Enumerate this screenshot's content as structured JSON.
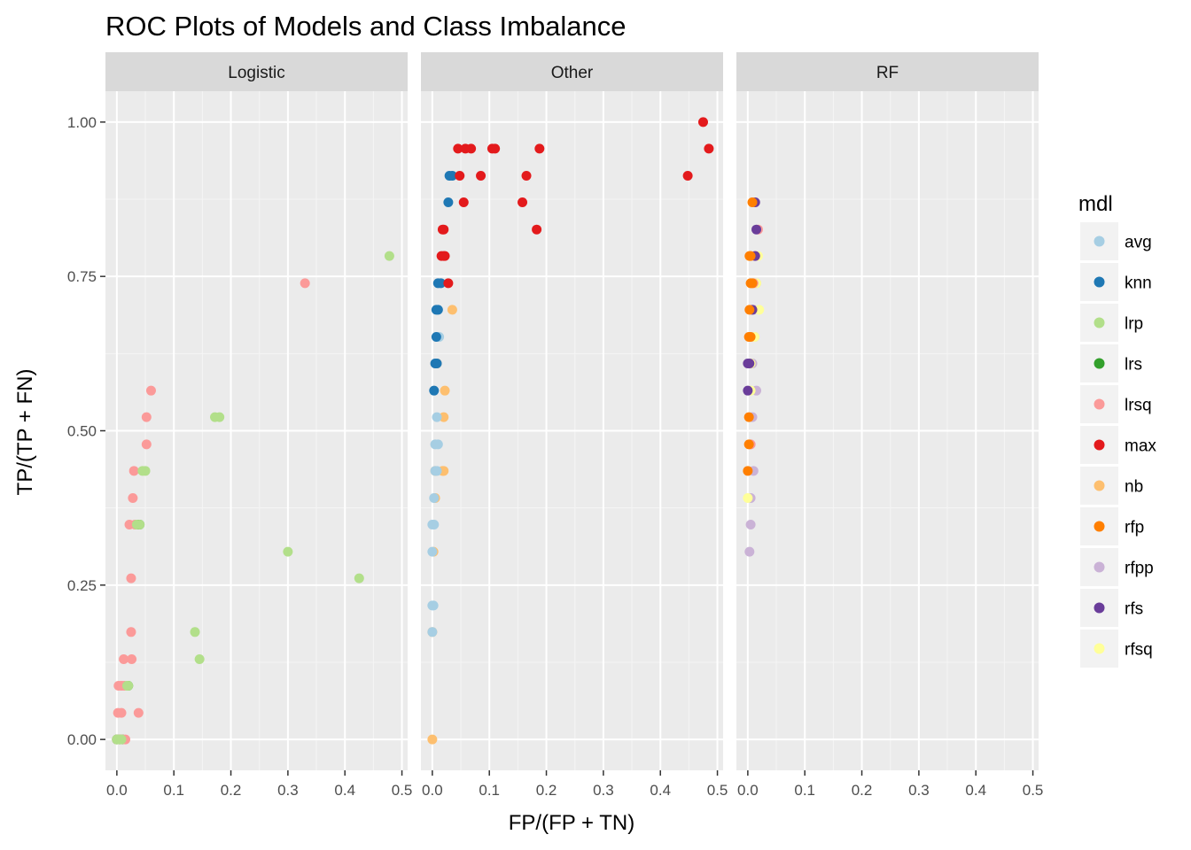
{
  "chart_data": {
    "type": "scatter",
    "title": "ROC Plots of Models and Class Imbalance",
    "xlabel": "FP/(FP + TN)",
    "ylabel": "TP/(TP + FN)",
    "xlim": [
      -0.02,
      0.51
    ],
    "ylim": [
      -0.05,
      1.05
    ],
    "x_ticks": [
      0.0,
      0.1,
      0.2,
      0.3,
      0.4,
      0.5
    ],
    "x_tick_labels": [
      "0.0",
      "0.1",
      "0.2",
      "0.3",
      "0.4",
      "0.5"
    ],
    "y_ticks": [
      0.0,
      0.25,
      0.5,
      0.75,
      1.0
    ],
    "y_tick_labels": [
      "0.00",
      "0.25",
      "0.50",
      "0.75",
      "1.00"
    ],
    "grid": true,
    "legend": {
      "title": "mdl",
      "position": "right",
      "entries": [
        {
          "name": "avg",
          "color": "#a6cee3"
        },
        {
          "name": "knn",
          "color": "#1f78b4"
        },
        {
          "name": "lrp",
          "color": "#b2df8a"
        },
        {
          "name": "lrs",
          "color": "#33a02c"
        },
        {
          "name": "lrsq",
          "color": "#fb9a99"
        },
        {
          "name": "max",
          "color": "#e31a1c"
        },
        {
          "name": "nb",
          "color": "#fdbf6f"
        },
        {
          "name": "rfp",
          "color": "#ff7f00"
        },
        {
          "name": "rfpp",
          "color": "#cab2d6"
        },
        {
          "name": "rfs",
          "color": "#6a3d9a"
        },
        {
          "name": "rfsq",
          "color": "#ffff99"
        }
      ]
    },
    "facets": [
      {
        "name": "Logistic",
        "series": [
          {
            "name": "lrs",
            "points": [
              [
                0.0,
                0.0
              ],
              [
                0.005,
                0.0
              ],
              [
                0.02,
                0.087
              ],
              [
                0.038,
                0.348
              ],
              [
                0.04,
                0.348
              ],
              [
                0.0,
                0.0
              ],
              [
                0.01,
                0.0
              ]
            ]
          },
          {
            "name": "lrsq",
            "points": [
              [
                0.0,
                0.0
              ],
              [
                0.005,
                0.0
              ],
              [
                0.01,
                0.0
              ],
              [
                0.015,
                0.0
              ],
              [
                0.002,
                0.043
              ],
              [
                0.008,
                0.043
              ],
              [
                0.038,
                0.043
              ],
              [
                0.003,
                0.087
              ],
              [
                0.008,
                0.087
              ],
              [
                0.013,
                0.087
              ],
              [
                0.012,
                0.13
              ],
              [
                0.026,
                0.13
              ],
              [
                0.025,
                0.174
              ],
              [
                0.025,
                0.261
              ],
              [
                0.022,
                0.348
              ],
              [
                0.032,
                0.348
              ],
              [
                0.028,
                0.391
              ],
              [
                0.03,
                0.435
              ],
              [
                0.052,
                0.478
              ],
              [
                0.052,
                0.522
              ],
              [
                0.06,
                0.565
              ],
              [
                0.33,
                0.739
              ]
            ]
          },
          {
            "name": "lrp",
            "points": [
              [
                0.0,
                0.0
              ],
              [
                0.004,
                0.0
              ],
              [
                0.008,
                0.0
              ],
              [
                0.02,
                0.087
              ],
              [
                0.018,
                0.087
              ],
              [
                0.145,
                0.13
              ],
              [
                0.137,
                0.174
              ],
              [
                0.3,
                0.304
              ],
              [
                0.425,
                0.261
              ],
              [
                0.035,
                0.348
              ],
              [
                0.04,
                0.348
              ],
              [
                0.045,
                0.435
              ],
              [
                0.05,
                0.435
              ],
              [
                0.172,
                0.522
              ],
              [
                0.18,
                0.522
              ],
              [
                0.478,
                0.783
              ]
            ]
          }
        ]
      },
      {
        "name": "Other",
        "series": [
          {
            "name": "nb",
            "points": [
              [
                0.0,
                0.0
              ],
              [
                0.0,
                0.174
              ],
              [
                0.002,
                0.304
              ],
              [
                0.005,
                0.391
              ],
              [
                0.005,
                0.435
              ],
              [
                0.018,
                0.435
              ],
              [
                0.02,
                0.435
              ],
              [
                0.02,
                0.522
              ],
              [
                0.022,
                0.565
              ],
              [
                0.035,
                0.696
              ],
              [
                0.008,
                0.609
              ]
            ]
          },
          {
            "name": "avg",
            "points": [
              [
                0.0,
                0.174
              ],
              [
                0.0,
                0.217
              ],
              [
                0.002,
                0.217
              ],
              [
                0.0,
                0.304
              ],
              [
                0.0,
                0.348
              ],
              [
                0.003,
                0.348
              ],
              [
                0.003,
                0.391
              ],
              [
                0.005,
                0.435
              ],
              [
                0.008,
                0.435
              ],
              [
                0.005,
                0.478
              ],
              [
                0.01,
                0.478
              ],
              [
                0.008,
                0.522
              ],
              [
                0.012,
                0.652
              ],
              [
                0.01,
                0.696
              ]
            ]
          },
          {
            "name": "knn",
            "points": [
              [
                0.003,
                0.565
              ],
              [
                0.005,
                0.609
              ],
              [
                0.008,
                0.609
              ],
              [
                0.007,
                0.652
              ],
              [
                0.007,
                0.696
              ],
              [
                0.01,
                0.696
              ],
              [
                0.01,
                0.739
              ],
              [
                0.015,
                0.739
              ],
              [
                0.028,
                0.87
              ],
              [
                0.03,
                0.913
              ],
              [
                0.035,
                0.913
              ]
            ]
          },
          {
            "name": "max",
            "points": [
              [
                0.028,
                0.739
              ],
              [
                0.016,
                0.783
              ],
              [
                0.02,
                0.783
              ],
              [
                0.022,
                0.783
              ],
              [
                0.018,
                0.826
              ],
              [
                0.02,
                0.826
              ],
              [
                0.048,
                0.913
              ],
              [
                0.085,
                0.913
              ],
              [
                0.165,
                0.913
              ],
              [
                0.448,
                0.913
              ],
              [
                0.055,
                0.87
              ],
              [
                0.158,
                0.87
              ],
              [
                0.045,
                0.957
              ],
              [
                0.058,
                0.957
              ],
              [
                0.068,
                0.957
              ],
              [
                0.105,
                0.957
              ],
              [
                0.11,
                0.957
              ],
              [
                0.188,
                0.957
              ],
              [
                0.485,
                0.957
              ],
              [
                0.183,
                0.826
              ],
              [
                0.475,
                1.0
              ]
            ]
          }
        ]
      },
      {
        "name": "RF",
        "series": [
          {
            "name": "rfpp",
            "points": [
              [
                0.003,
                0.304
              ],
              [
                0.005,
                0.348
              ],
              [
                0.005,
                0.391
              ],
              [
                0.01,
                0.435
              ],
              [
                0.005,
                0.478
              ],
              [
                0.008,
                0.522
              ],
              [
                0.015,
                0.565
              ],
              [
                0.008,
                0.609
              ],
              [
                0.012,
                0.652
              ],
              [
                0.01,
                0.696
              ],
              [
                0.015,
                0.739
              ],
              [
                0.012,
                0.783
              ]
            ]
          },
          {
            "name": "rfsq",
            "points": [
              [
                0.0,
                0.391
              ],
              [
                0.005,
                0.565
              ],
              [
                0.005,
                0.609
              ],
              [
                0.012,
                0.652
              ],
              [
                0.02,
                0.696
              ],
              [
                0.015,
                0.739
              ],
              [
                0.018,
                0.783
              ]
            ]
          },
          {
            "name": "lrsq",
            "points": [
              [
                0.005,
                0.478
              ],
              [
                0.008,
                0.696
              ],
              [
                0.013,
                0.783
              ],
              [
                0.018,
                0.826
              ],
              [
                0.01,
                0.739
              ]
            ]
          },
          {
            "name": "rfs",
            "points": [
              [
                0.0,
                0.565
              ],
              [
                0.0,
                0.609
              ],
              [
                0.003,
                0.609
              ],
              [
                0.008,
                0.696
              ],
              [
                0.015,
                0.826
              ],
              [
                0.013,
                0.87
              ],
              [
                0.013,
                0.783
              ]
            ]
          },
          {
            "name": "rfp",
            "points": [
              [
                0.0,
                0.435
              ],
              [
                0.002,
                0.478
              ],
              [
                0.002,
                0.522
              ],
              [
                0.002,
                0.652
              ],
              [
                0.005,
                0.652
              ],
              [
                0.003,
                0.696
              ],
              [
                0.005,
                0.739
              ],
              [
                0.008,
                0.739
              ],
              [
                0.003,
                0.783
              ],
              [
                0.005,
                0.783
              ],
              [
                0.008,
                0.87
              ]
            ]
          }
        ]
      }
    ]
  }
}
